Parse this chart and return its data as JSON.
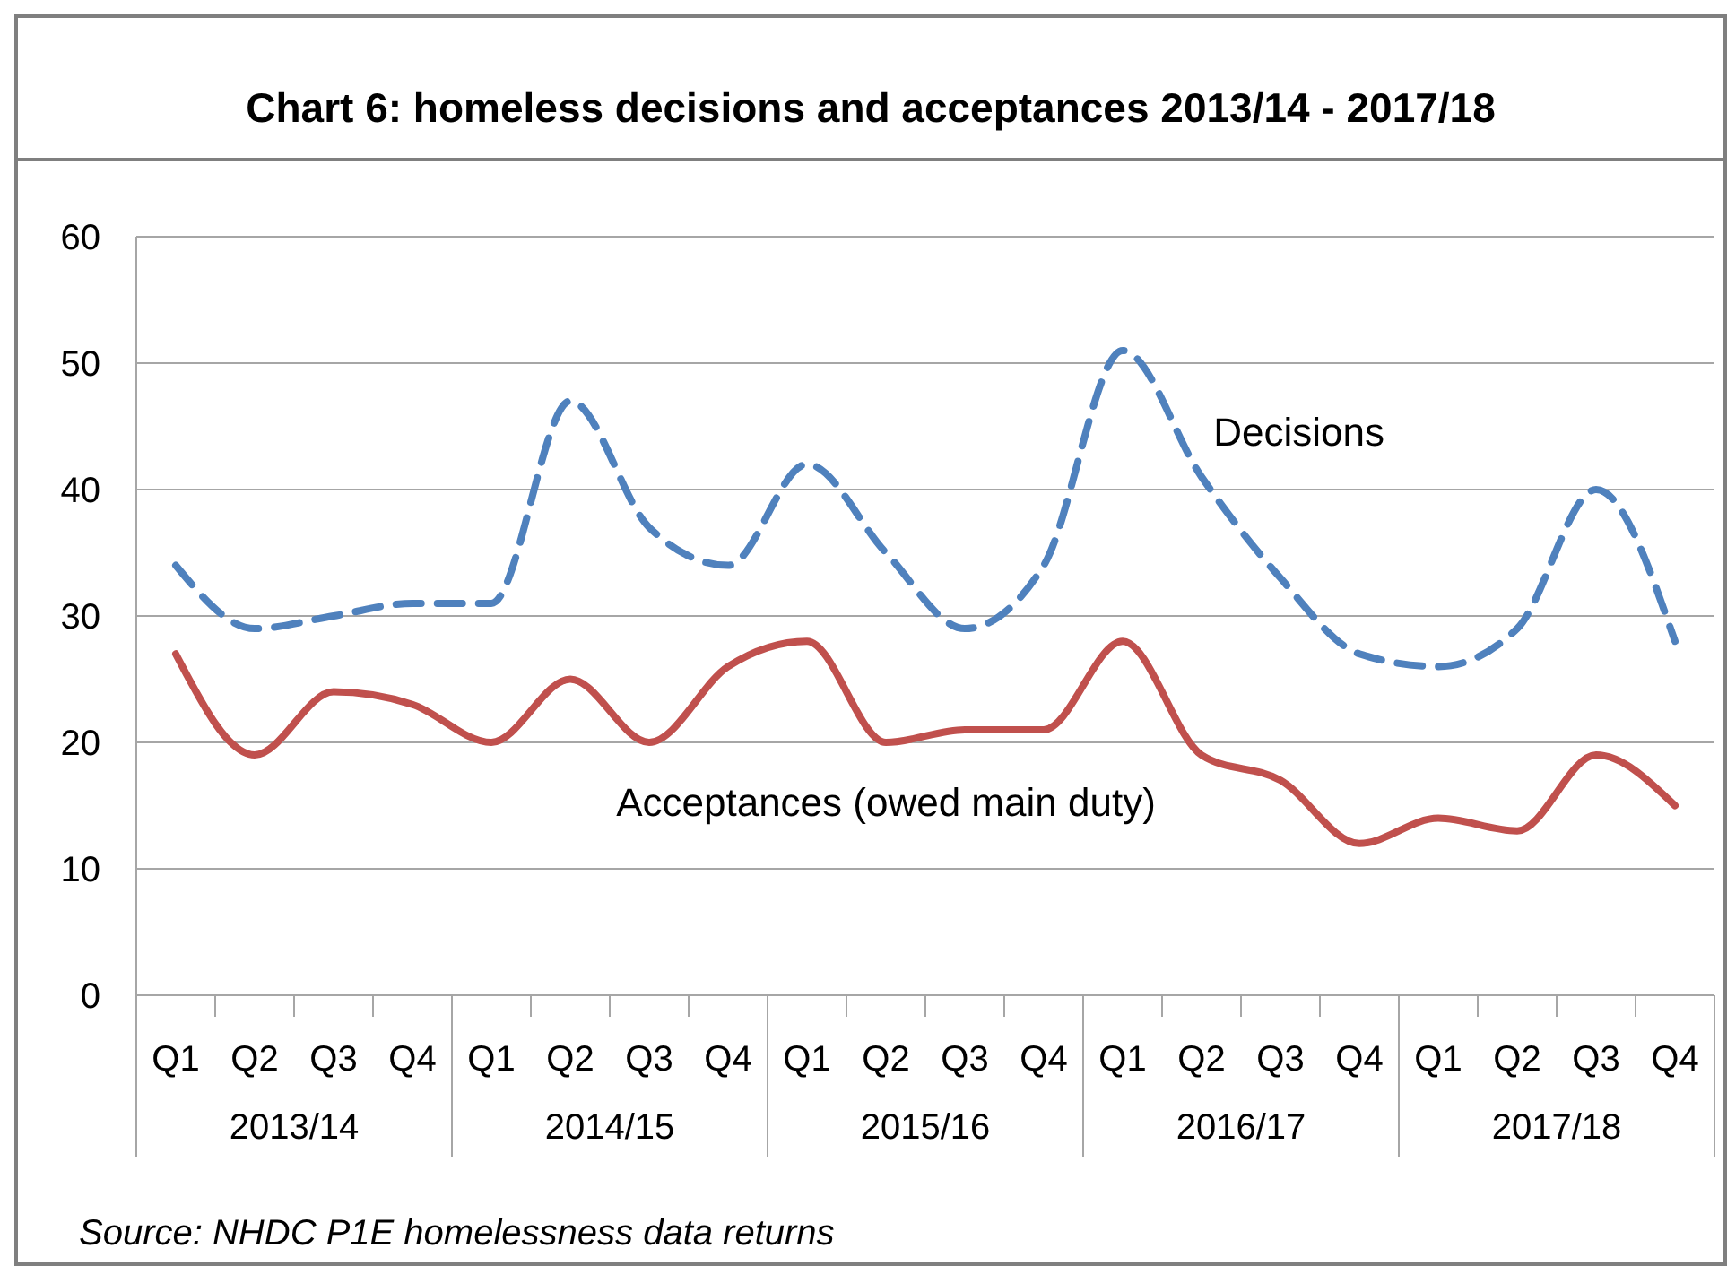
{
  "chart_data": {
    "type": "line",
    "title": "Chart 6:  homeless decisions and acceptances 2013/14 - 2017/18",
    "categories": [
      "Q1",
      "Q2",
      "Q3",
      "Q4",
      "Q1",
      "Q2",
      "Q3",
      "Q4",
      "Q1",
      "Q2",
      "Q3",
      "Q4",
      "Q1",
      "Q2",
      "Q3",
      "Q4",
      "Q1",
      "Q2",
      "Q3",
      "Q4"
    ],
    "series": [
      {
        "name": "Decisions",
        "color": "#4f81bd",
        "line_style": "dashed",
        "values": [
          34,
          29,
          30,
          31,
          31,
          47,
          37,
          34,
          42,
          35,
          29,
          34,
          51,
          41,
          33,
          27,
          26,
          29,
          40,
          28
        ]
      },
      {
        "name": "Acceptances (owed main duty)",
        "color": "#c0504d",
        "line_style": "solid",
        "values": [
          27,
          19,
          24,
          23,
          20,
          25,
          20,
          26,
          28,
          20,
          21,
          21,
          28,
          19,
          17,
          12,
          14,
          13,
          19,
          15
        ]
      }
    ],
    "ylim": [
      0,
      60
    ],
    "yticks": [
      0,
      10,
      20,
      30,
      40,
      50,
      60
    ],
    "grid": "y",
    "marker": "none",
    "annotations": [
      "2013/14",
      "2014/15",
      "2015/16",
      "2016/17",
      "2017/18",
      "Source: NHDC P1E homelessness data returns"
    ]
  }
}
